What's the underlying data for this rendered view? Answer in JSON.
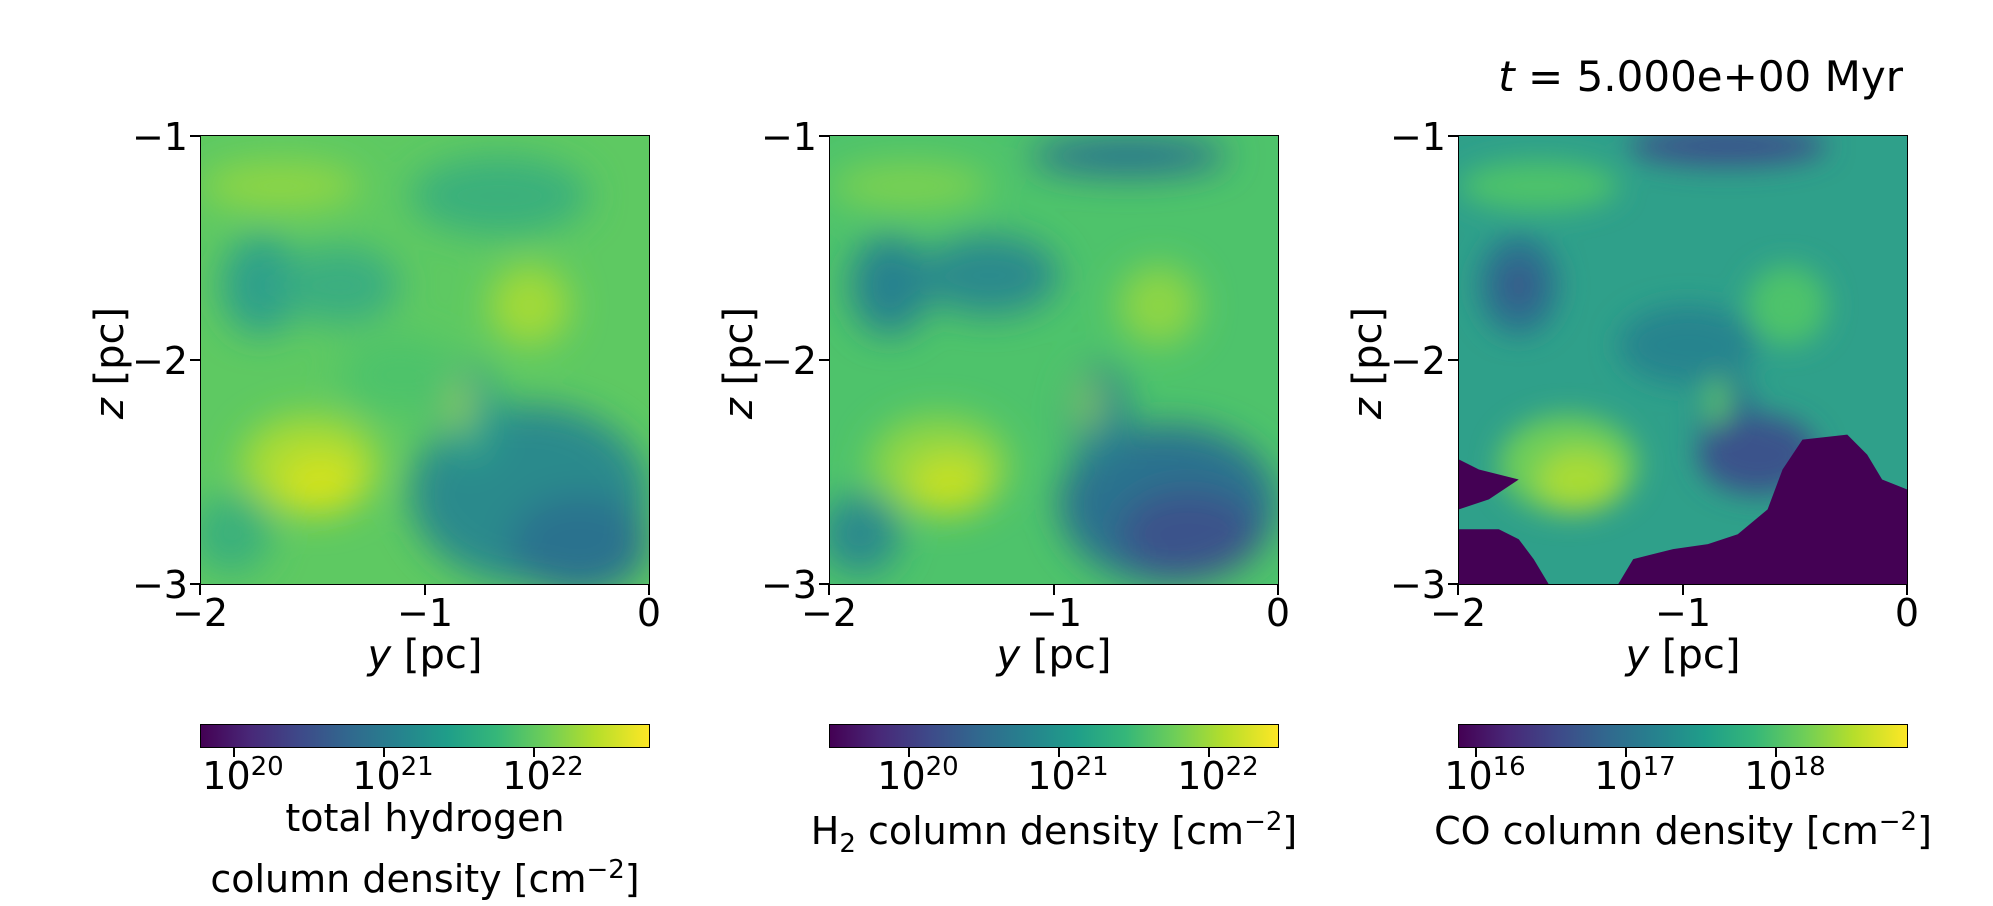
{
  "title": {
    "t": "t",
    "eq": " = ",
    "value": "5.000e+00 Myr"
  },
  "chart_data": [
    {
      "type": "heatmap",
      "quantity": "total hydrogen column density",
      "xlabel": {
        "var": "y",
        "unit": " [pc]"
      },
      "ylabel": {
        "var": "z",
        "unit": " [pc]"
      },
      "xlim": [
        -2,
        0
      ],
      "ylim": [
        -3,
        -1
      ],
      "xticks": [
        "−2",
        "−1",
        "0"
      ],
      "yticks": [
        "−1",
        "−2",
        "−3"
      ],
      "colorbar": {
        "scale": "log",
        "ticks": [
          {
            "base": "10",
            "exp": "20"
          },
          {
            "base": "10",
            "exp": "21"
          },
          {
            "base": "10",
            "exp": "22"
          }
        ],
        "label_line1": "total hydrogen",
        "label_line2_pre": "column density [cm",
        "label_exp": "−2",
        "label_post": "]"
      }
    },
    {
      "type": "heatmap",
      "quantity": "H2 column density",
      "xlabel": {
        "var": "y",
        "unit": " [pc]"
      },
      "ylabel": {
        "var": "z",
        "unit": " [pc]"
      },
      "xlim": [
        -2,
        0
      ],
      "ylim": [
        -3,
        -1
      ],
      "xticks": [
        "−2",
        "−1",
        "0"
      ],
      "yticks": [
        "−1",
        "−2",
        "−3"
      ],
      "colorbar": {
        "scale": "log",
        "ticks": [
          {
            "base": "10",
            "exp": "20"
          },
          {
            "base": "10",
            "exp": "21"
          },
          {
            "base": "10",
            "exp": "22"
          }
        ],
        "label_pre": "H",
        "label_sub": "2",
        "label_mid": " column density [cm",
        "label_exp": "−2",
        "label_post": "]"
      }
    },
    {
      "type": "heatmap",
      "quantity": "CO column density",
      "xlabel": {
        "var": "y",
        "unit": " [pc]"
      },
      "ylabel": {
        "var": "z",
        "unit": " [pc]"
      },
      "xlim": [
        -2,
        0
      ],
      "ylim": [
        -3,
        -1
      ],
      "xticks": [
        "−2",
        "−1",
        "0"
      ],
      "yticks": [
        "−1",
        "−2",
        "−3"
      ],
      "colorbar": {
        "scale": "log",
        "ticks": [
          {
            "base": "10",
            "exp": "16"
          },
          {
            "base": "10",
            "exp": "17"
          },
          {
            "base": "10",
            "exp": "18"
          }
        ],
        "label_pre": "CO column density [cm",
        "label_exp": "−2",
        "label_post": "]"
      }
    }
  ],
  "colors": {
    "viridis_low": "#440154",
    "viridis_mid": "#21918c",
    "viridis_high": "#fde725"
  }
}
